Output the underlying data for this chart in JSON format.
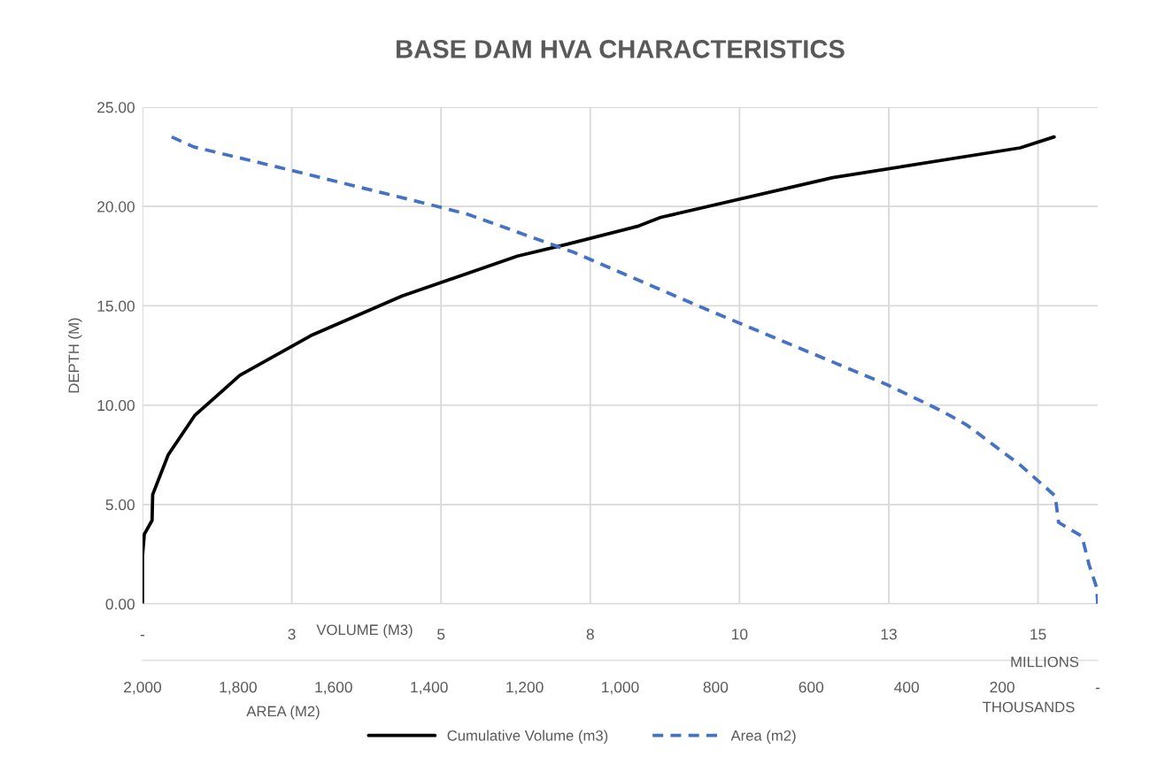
{
  "chart_data": {
    "type": "line",
    "title": "BASE DAM HVA CHARACTERISTICS",
    "xlabel": "VOLUME (M3)",
    "x2label": "AREA (M2)",
    "ylabel": "DEPTH (M)",
    "series": [
      {
        "name": "Cumulative Volume (m3)",
        "color": "#000000",
        "line_style": "solid",
        "x": [
          0,
          0,
          0.03,
          0.16,
          0.17,
          0.43,
          0.88,
          1.63,
          2.82,
          4.35,
          6.28,
          7.11,
          8.29,
          8.68,
          11.56,
          14.7,
          15.27
        ],
        "values": [
          0,
          2.4,
          3.5,
          4.2,
          5.5,
          7.5,
          9.5,
          11.5,
          13.5,
          15.5,
          17.5,
          18.1,
          19.0,
          19.45,
          21.45,
          22.95,
          23.5
        ]
      },
      {
        "name": "Area (m2)",
        "color": "#4472c4",
        "line_style": "dashed",
        "axis": "x2",
        "x": [
          1939,
          1893,
          1694,
          1382,
          1318,
          1098,
          823,
          441,
          326,
          274,
          163,
          89,
          82,
          33,
          18,
          2,
          0
        ],
        "values": [
          23.5,
          23.0,
          21.85,
          20.0,
          19.6,
          17.7,
          14.86,
          11.03,
          9.7,
          9.0,
          7.0,
          5.43,
          4.1,
          3.4,
          1.96,
          0.8,
          0
        ]
      }
    ],
    "xlim": [
      0,
      16
    ],
    "xticks": [
      {
        "value": 0,
        "label": "-"
      },
      {
        "value": 2.5,
        "label": "3"
      },
      {
        "value": 5,
        "label": "5"
      },
      {
        "value": 7.5,
        "label": "8"
      },
      {
        "value": 10,
        "label": "10"
      },
      {
        "value": 12.5,
        "label": "13"
      },
      {
        "value": 15,
        "label": "15"
      }
    ],
    "x2lim": [
      2000,
      0
    ],
    "x2ticks": [
      {
        "value": 2000,
        "label": "2,000"
      },
      {
        "value": 1800,
        "label": "1,800"
      },
      {
        "value": 1600,
        "label": "1,600"
      },
      {
        "value": 1400,
        "label": "1,400"
      },
      {
        "value": 1200,
        "label": "1,200"
      },
      {
        "value": 1000,
        "label": "1,000"
      },
      800,
      600,
      400,
      200,
      {
        "value": 0,
        "label": "-"
      }
    ],
    "ylim": [
      0,
      25
    ],
    "yticks": [
      {
        "value": 0,
        "label": "0.00"
      },
      {
        "value": 5,
        "label": "5.00"
      },
      {
        "value": 10,
        "label": "10.00"
      },
      {
        "value": 15,
        "label": "15.00"
      },
      {
        "value": 20,
        "label": "20.00"
      },
      {
        "value": 25,
        "label": "25.00"
      }
    ],
    "annotations": [
      "MILLIONS",
      "THOUSANDS"
    ],
    "grid": true,
    "legend": "bottom",
    "marker": "none"
  }
}
